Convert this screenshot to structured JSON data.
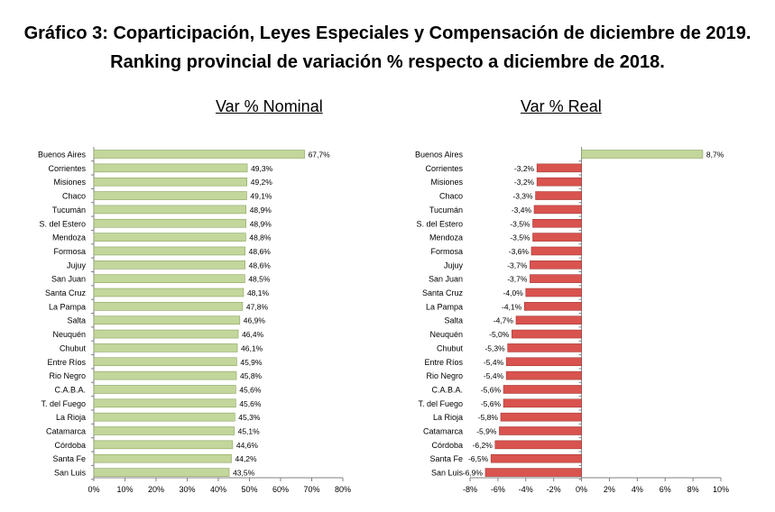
{
  "title_line1": "Gráfico 3: Coparticipación, Leyes Especiales y Compensación de diciembre de 2019.",
  "title_line2": "Ranking provincial de variación % respecto a diciembre de 2018.",
  "colors": {
    "nominal_bar": "#c3d69b",
    "real_bar": "#d9534f",
    "bar_border": "#8aa35e",
    "real_border": "#a33a36"
  },
  "chart_data": [
    {
      "type": "bar",
      "orientation": "horizontal",
      "title": "Var % Nominal",
      "categories": [
        "Buenos Aires",
        "Corrientes",
        "Misiones",
        "Chaco",
        "Tucumán",
        "S. del Estero",
        "Mendoza",
        "Formosa",
        "Jujuy",
        "San Juan",
        "Santa Cruz",
        "La Pampa",
        "Salta",
        "Neuquén",
        "Chubut",
        "Entre Ríos",
        "Rio Negro",
        "C.A.B.A.",
        "T. del Fuego",
        "La Rioja",
        "Catamarca",
        "Córdoba",
        "Santa Fe",
        "San Luis"
      ],
      "values": [
        67.7,
        49.3,
        49.2,
        49.1,
        48.9,
        48.9,
        48.8,
        48.6,
        48.6,
        48.5,
        48.1,
        47.8,
        46.9,
        46.4,
        46.1,
        45.9,
        45.8,
        45.6,
        45.6,
        45.3,
        45.1,
        44.6,
        44.2,
        43.5
      ],
      "data_labels": [
        "67,7%",
        "49,3%",
        "49,2%",
        "49,1%",
        "48,9%",
        "48,9%",
        "48,8%",
        "48,6%",
        "48,6%",
        "48,5%",
        "48,1%",
        "47,8%",
        "46,9%",
        "46,4%",
        "46,1%",
        "45,9%",
        "45,8%",
        "45,6%",
        "45,6%",
        "45,3%",
        "45,1%",
        "44,6%",
        "44,2%",
        "43,5%"
      ],
      "xlim": [
        0,
        80
      ],
      "xticks": [
        0,
        10,
        20,
        30,
        40,
        50,
        60,
        70,
        80
      ],
      "xtick_labels": [
        "0%",
        "10%",
        "20%",
        "30%",
        "40%",
        "50%",
        "60%",
        "70%",
        "80%"
      ],
      "grid": false,
      "legend": "none"
    },
    {
      "type": "bar",
      "orientation": "horizontal",
      "title": "Var % Real",
      "categories": [
        "Buenos Aires",
        "Corrientes",
        "Misiones",
        "Chaco",
        "Tucumán",
        "S. del Estero",
        "Mendoza",
        "Formosa",
        "Jujuy",
        "San Juan",
        "Santa Cruz",
        "La Pampa",
        "Salta",
        "Neuquén",
        "Chubut",
        "Entre Ríos",
        "Rio Negro",
        "C.A.B.A.",
        "T. del Fuego",
        "La Rioja",
        "Catamarca",
        "Córdoba",
        "Santa Fe",
        "San Luis"
      ],
      "values": [
        8.7,
        -3.2,
        -3.2,
        -3.3,
        -3.4,
        -3.5,
        -3.5,
        -3.6,
        -3.7,
        -3.7,
        -4.0,
        -4.1,
        -4.7,
        -5.0,
        -5.3,
        -5.4,
        -5.4,
        -5.6,
        -5.6,
        -5.8,
        -5.9,
        -6.2,
        -6.5,
        -6.9
      ],
      "data_labels": [
        "8,7%",
        "-3,2%",
        "-3,2%",
        "-3,3%",
        "-3,4%",
        "-3,5%",
        "-3,5%",
        "-3,6%",
        "-3,7%",
        "-3,7%",
        "-4,0%",
        "-4,1%",
        "-4,7%",
        "-5,0%",
        "-5,3%",
        "-5,4%",
        "-5,4%",
        "-5,6%",
        "-5,6%",
        "-5,8%",
        "-5,9%",
        "-6,2%",
        "-6,5%",
        "-6,9%"
      ],
      "xlim": [
        -8,
        10
      ],
      "xticks": [
        -8,
        -6,
        -4,
        -2,
        0,
        2,
        4,
        6,
        8,
        10
      ],
      "xtick_labels": [
        "-8%",
        "-6%",
        "-4%",
        "-2%",
        "0%",
        "2%",
        "4%",
        "6%",
        "8%",
        "10%"
      ],
      "grid": false,
      "legend": "none"
    }
  ]
}
